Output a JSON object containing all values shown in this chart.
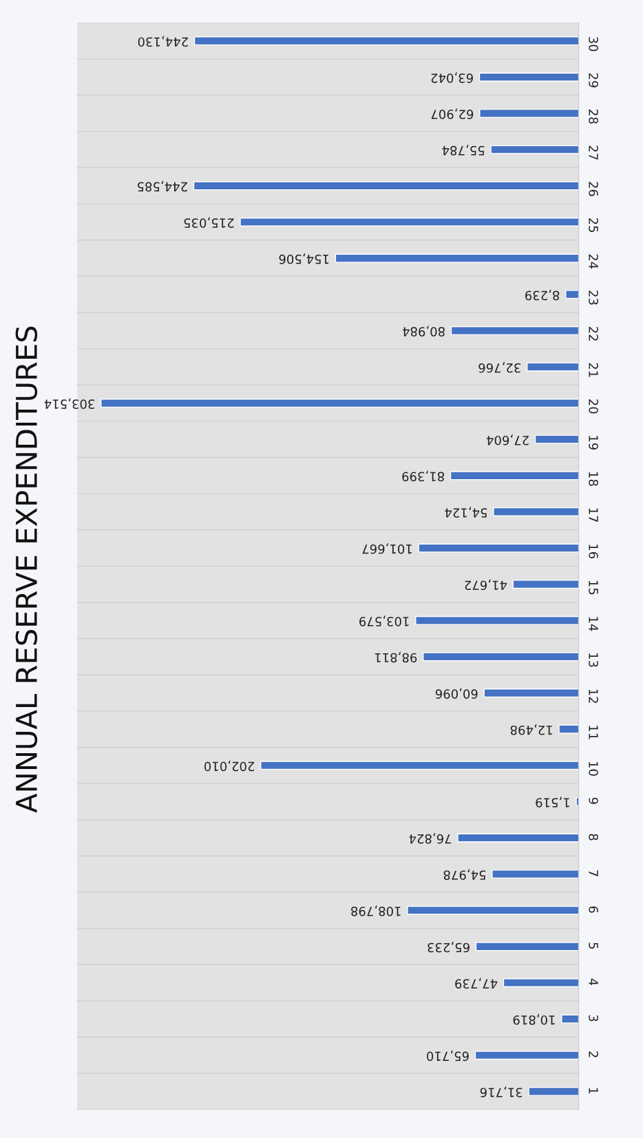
{
  "chart_data": {
    "type": "bar",
    "orientation": "horizontal",
    "title": "ANNUAL RESERVE EXPENDITURES",
    "categories": [
      "30",
      "29",
      "28",
      "27",
      "26",
      "25",
      "24",
      "23",
      "22",
      "21",
      "20",
      "19",
      "18",
      "17",
      "16",
      "15",
      "14",
      "13",
      "12",
      "11",
      "10",
      "9",
      "8",
      "7",
      "6",
      "5",
      "4",
      "3",
      "2",
      "1"
    ],
    "values": [
      244130,
      63042,
      62907,
      55784,
      244585,
      215035,
      154506,
      8239,
      80984,
      32766,
      303514,
      27604,
      81399,
      54124,
      101667,
      41672,
      103579,
      98811,
      60096,
      12498,
      202010,
      1519,
      76824,
      54978,
      108798,
      65233,
      47739,
      10819,
      65710,
      31716
    ],
    "value_labels": [
      "244,130",
      "63,042",
      "62,907",
      "55,784",
      "244,585",
      "215,035",
      "154,506",
      "8,239",
      "80,984",
      "32,766",
      "303,514",
      "27,604",
      "81,399",
      "54,124",
      "101,667",
      "41,672",
      "103,579",
      "98,811",
      "60,096",
      "12,498",
      "202,010",
      "1,519",
      "76,824",
      "54,978",
      "108,798",
      "65,233",
      "47,739",
      "10,819",
      "65,710",
      "31,716"
    ],
    "color": "#4472c4"
  }
}
